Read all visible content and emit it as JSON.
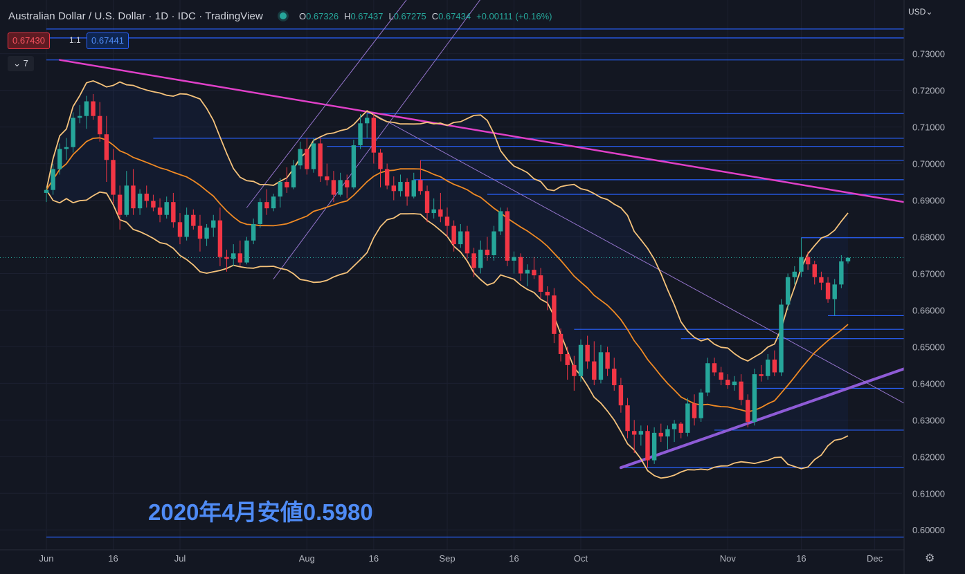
{
  "header": {
    "title": "Australian Dollar / U.S. Dollar · 1D · IDC · TradingView",
    "ohlc": [
      {
        "k": "O",
        "v": "0.67326"
      },
      {
        "k": "H",
        "v": "0.67437"
      },
      {
        "k": "L",
        "v": "0.67275"
      },
      {
        "k": "C",
        "v": "0.67434"
      }
    ],
    "change": "+0.00111 (+0.16%)"
  },
  "bid": "0.67430",
  "spread": "1.1",
  "ask": "0.67441",
  "indicator_toggle": "⌄ 7",
  "currency": "USD⌄",
  "annotation": "2020年4月安値0.5980",
  "colors": {
    "background": "#131722",
    "up": "#26a69a",
    "down": "#f23645",
    "level": "#2962ff",
    "trend_pink": "#e040c8",
    "trend_purple": "#8e5bd6",
    "bb_outer": "#f6c37b",
    "bb_mid": "#f08a24",
    "channel": "#9575cd"
  },
  "chart_data": {
    "type": "candlestick",
    "y_range": [
      0.595,
      0.741
    ],
    "y_ticks": [
      "0.73000",
      "0.72000",
      "0.71000",
      "0.70000",
      "0.69000",
      "0.68000",
      "0.67000",
      "0.66000",
      "0.65000",
      "0.64000",
      "0.63000",
      "0.62000",
      "0.61000",
      "0.60000"
    ],
    "x_labels": [
      {
        "label": "Jun",
        "i": 0
      },
      {
        "label": "16",
        "i": 10
      },
      {
        "label": "Jul",
        "i": 20
      },
      {
        "label": "Aug",
        "i": 39
      },
      {
        "label": "16",
        "i": 49
      },
      {
        "label": "Sep",
        "i": 60
      },
      {
        "label": "16",
        "i": 70
      },
      {
        "label": "Oct",
        "i": 80
      },
      {
        "label": "Nov",
        "i": 102
      },
      {
        "label": "16",
        "i": 113
      },
      {
        "label": "Dec",
        "i": 124
      }
    ],
    "candles": [
      [
        0.692,
        0.6935,
        0.6895,
        0.6928
      ],
      [
        0.6928,
        0.6999,
        0.6915,
        0.6985
      ],
      [
        0.6985,
        0.7055,
        0.697,
        0.704
      ],
      [
        0.704,
        0.707,
        0.701,
        0.7045
      ],
      [
        0.7045,
        0.714,
        0.703,
        0.7125
      ],
      [
        0.7125,
        0.716,
        0.711,
        0.713
      ],
      [
        0.713,
        0.7185,
        0.7095,
        0.717
      ],
      [
        0.717,
        0.719,
        0.712,
        0.713
      ],
      [
        0.713,
        0.7168,
        0.706,
        0.708
      ],
      [
        0.708,
        0.713,
        0.695,
        0.701
      ],
      [
        0.701,
        0.704,
        0.689,
        0.6915
      ],
      [
        0.6915,
        0.694,
        0.682,
        0.686
      ],
      [
        0.686,
        0.698,
        0.6855,
        0.694
      ],
      [
        0.694,
        0.6985,
        0.686,
        0.6878
      ],
      [
        0.6878,
        0.693,
        0.686,
        0.6918
      ],
      [
        0.6918,
        0.694,
        0.688,
        0.6898
      ],
      [
        0.6898,
        0.6915,
        0.687,
        0.688
      ],
      [
        0.688,
        0.6905,
        0.684,
        0.686
      ],
      [
        0.686,
        0.691,
        0.685,
        0.6895
      ],
      [
        0.6895,
        0.692,
        0.6825,
        0.684
      ],
      [
        0.684,
        0.6865,
        0.678,
        0.68
      ],
      [
        0.68,
        0.688,
        0.679,
        0.686
      ],
      [
        0.686,
        0.6875,
        0.682,
        0.683
      ],
      [
        0.683,
        0.686,
        0.676,
        0.6795
      ],
      [
        0.6795,
        0.6835,
        0.6775,
        0.6825
      ],
      [
        0.6825,
        0.686,
        0.68,
        0.6845
      ],
      [
        0.6845,
        0.688,
        0.672,
        0.6745
      ],
      [
        0.6745,
        0.6765,
        0.6705,
        0.674
      ],
      [
        0.674,
        0.678,
        0.672,
        0.6755
      ],
      [
        0.6755,
        0.679,
        0.672,
        0.673
      ],
      [
        0.673,
        0.68,
        0.6725,
        0.679
      ],
      [
        0.679,
        0.685,
        0.678,
        0.6835
      ],
      [
        0.6835,
        0.6905,
        0.6825,
        0.6895
      ],
      [
        0.6895,
        0.693,
        0.686,
        0.6878
      ],
      [
        0.6878,
        0.6918,
        0.687,
        0.691
      ],
      [
        0.691,
        0.696,
        0.688,
        0.695
      ],
      [
        0.695,
        0.699,
        0.692,
        0.6935
      ],
      [
        0.6935,
        0.701,
        0.693,
        0.6995
      ],
      [
        0.6995,
        0.706,
        0.6985,
        0.704
      ],
      [
        0.704,
        0.707,
        0.697,
        0.6985
      ],
      [
        0.6985,
        0.707,
        0.6975,
        0.7055
      ],
      [
        0.7055,
        0.707,
        0.695,
        0.6965
      ],
      [
        0.6965,
        0.7,
        0.694,
        0.6955
      ],
      [
        0.6955,
        0.698,
        0.6895,
        0.6915
      ],
      [
        0.6915,
        0.6975,
        0.691,
        0.6955
      ],
      [
        0.6955,
        0.697,
        0.6905,
        0.6935
      ],
      [
        0.6935,
        0.7065,
        0.693,
        0.705
      ],
      [
        0.705,
        0.7135,
        0.704,
        0.711
      ],
      [
        0.711,
        0.7137,
        0.707,
        0.7125
      ],
      [
        0.7125,
        0.7135,
        0.7,
        0.703
      ],
      [
        0.703,
        0.704,
        0.6935,
        0.6985
      ],
      [
        0.6985,
        0.7,
        0.693,
        0.694
      ],
      [
        0.694,
        0.6965,
        0.69,
        0.6925
      ],
      [
        0.6925,
        0.697,
        0.691,
        0.695
      ],
      [
        0.695,
        0.696,
        0.6885,
        0.691
      ],
      [
        0.691,
        0.6975,
        0.6905,
        0.6955
      ],
      [
        0.6955,
        0.7009,
        0.6915,
        0.6925
      ],
      [
        0.6925,
        0.694,
        0.684,
        0.6865
      ],
      [
        0.6865,
        0.6905,
        0.685,
        0.6875
      ],
      [
        0.6875,
        0.692,
        0.684,
        0.6855
      ],
      [
        0.6855,
        0.688,
        0.68,
        0.683
      ],
      [
        0.683,
        0.6845,
        0.676,
        0.678
      ],
      [
        0.678,
        0.6835,
        0.677,
        0.6815
      ],
      [
        0.6815,
        0.683,
        0.674,
        0.6755
      ],
      [
        0.6755,
        0.677,
        0.669,
        0.6715
      ],
      [
        0.6715,
        0.679,
        0.67,
        0.6765
      ],
      [
        0.6765,
        0.68,
        0.6735,
        0.675
      ],
      [
        0.675,
        0.683,
        0.6735,
        0.6815
      ],
      [
        0.6815,
        0.688,
        0.6805,
        0.687
      ],
      [
        0.687,
        0.688,
        0.672,
        0.6735
      ],
      [
        0.6735,
        0.676,
        0.67,
        0.6745
      ],
      [
        0.6745,
        0.6755,
        0.668,
        0.67
      ],
      [
        0.67,
        0.6725,
        0.6665,
        0.671
      ],
      [
        0.671,
        0.6745,
        0.6685,
        0.6695
      ],
      [
        0.6695,
        0.6715,
        0.663,
        0.665
      ],
      [
        0.665,
        0.6665,
        0.66,
        0.664
      ],
      [
        0.664,
        0.666,
        0.651,
        0.6535
      ],
      [
        0.6535,
        0.655,
        0.646,
        0.648
      ],
      [
        0.648,
        0.65,
        0.641,
        0.645
      ],
      [
        0.645,
        0.6475,
        0.638,
        0.642
      ],
      [
        0.642,
        0.652,
        0.6405,
        0.6505
      ],
      [
        0.6505,
        0.653,
        0.644,
        0.646
      ],
      [
        0.646,
        0.6515,
        0.6395,
        0.641
      ],
      [
        0.641,
        0.6505,
        0.64,
        0.6485
      ],
      [
        0.6485,
        0.65,
        0.642,
        0.644
      ],
      [
        0.644,
        0.647,
        0.638,
        0.6395
      ],
      [
        0.6395,
        0.6415,
        0.632,
        0.634
      ],
      [
        0.634,
        0.636,
        0.625,
        0.627
      ],
      [
        0.627,
        0.63,
        0.621,
        0.626
      ],
      [
        0.626,
        0.6285,
        0.623,
        0.627
      ],
      [
        0.627,
        0.6285,
        0.617,
        0.619
      ],
      [
        0.619,
        0.628,
        0.618,
        0.6265
      ],
      [
        0.6265,
        0.629,
        0.624,
        0.6255
      ],
      [
        0.6255,
        0.6285,
        0.622,
        0.6275
      ],
      [
        0.6275,
        0.63,
        0.624,
        0.629
      ],
      [
        0.629,
        0.6295,
        0.625,
        0.6265
      ],
      [
        0.6265,
        0.636,
        0.6255,
        0.6345
      ],
      [
        0.6345,
        0.637,
        0.6285,
        0.6305
      ],
      [
        0.6305,
        0.6385,
        0.6295,
        0.6375
      ],
      [
        0.6375,
        0.647,
        0.6365,
        0.6455
      ],
      [
        0.6455,
        0.647,
        0.642,
        0.643
      ],
      [
        0.643,
        0.6445,
        0.6395,
        0.641
      ],
      [
        0.641,
        0.6425,
        0.6385,
        0.6395
      ],
      [
        0.6395,
        0.642,
        0.638,
        0.6405
      ],
      [
        0.6405,
        0.6425,
        0.634,
        0.6355
      ],
      [
        0.6355,
        0.637,
        0.628,
        0.6295
      ],
      [
        0.6295,
        0.644,
        0.6285,
        0.6425
      ],
      [
        0.6425,
        0.645,
        0.6405,
        0.642
      ],
      [
        0.642,
        0.648,
        0.641,
        0.6465
      ],
      [
        0.6465,
        0.649,
        0.642,
        0.643
      ],
      [
        0.643,
        0.663,
        0.642,
        0.6615
      ],
      [
        0.6615,
        0.67,
        0.66,
        0.669
      ],
      [
        0.669,
        0.672,
        0.667,
        0.6705
      ],
      [
        0.6705,
        0.6798,
        0.669,
        0.6745
      ],
      [
        0.6745,
        0.676,
        0.671,
        0.6725
      ],
      [
        0.6725,
        0.6735,
        0.667,
        0.669
      ],
      [
        0.669,
        0.6705,
        0.6655,
        0.6675
      ],
      [
        0.6675,
        0.669,
        0.662,
        0.663
      ],
      [
        0.663,
        0.6685,
        0.6585,
        0.667
      ],
      [
        0.667,
        0.675,
        0.666,
        0.6733
      ],
      [
        0.6733,
        0.6744,
        0.6727,
        0.6743
      ]
    ],
    "horizontal_levels": [
      {
        "label": "0.73675",
        "value": 0.73675,
        "from": 0
      },
      {
        "label": "0.73430",
        "value": 0.7343,
        "from": 0
      },
      {
        "label": "0.72830",
        "value": 0.7283,
        "from": 0
      },
      {
        "label": "0.71368",
        "value": 0.71368,
        "from": 48
      },
      {
        "label": "0.70692",
        "value": 0.70692,
        "from": 16
      },
      {
        "label": "0.70470",
        "value": 0.7047,
        "from": 42
      },
      {
        "label": "0.70090",
        "value": 0.7009,
        "from": 56
      },
      {
        "label": "0.69560",
        "value": 0.6956,
        "from": 55
      },
      {
        "label": "0.69161",
        "value": 0.69161,
        "from": 66
      },
      {
        "label": "0.67977",
        "value": 0.67977,
        "from": 113
      },
      {
        "label": "0.65849",
        "value": 0.65849,
        "from": 117
      },
      {
        "label": "0.65476",
        "value": 0.65476,
        "from": 79
      },
      {
        "label": "0.65221",
        "value": 0.65221,
        "from": 95
      },
      {
        "label": "0.63865",
        "value": 0.63865,
        "from": 106
      },
      {
        "label": "0.62724",
        "value": 0.62724,
        "from": 100
      },
      {
        "label": "0.61703",
        "value": 0.61703,
        "from": 86
      },
      {
        "label": "0.59803",
        "value": 0.59803,
        "from": 0
      }
    ],
    "current_price": "0.67434",
    "trendlines": [
      {
        "name": "downtrend",
        "from": [
          2,
          0.7283
        ],
        "to": [
          130,
          0.689
        ]
      },
      {
        "name": "uptrend",
        "from": [
          86,
          0.617
        ],
        "to": [
          130,
          0.645
        ]
      },
      {
        "name": "channel-upper",
        "from": [
          30,
          0.688
        ],
        "to": [
          73,
          0.79
        ]
      },
      {
        "name": "channel-lower",
        "from": [
          34,
          0.6685
        ],
        "to": [
          76,
          0.772
        ]
      },
      {
        "name": "diagonal",
        "from": [
          49,
          0.7135
        ],
        "to": [
          130,
          0.633
        ]
      }
    ]
  }
}
